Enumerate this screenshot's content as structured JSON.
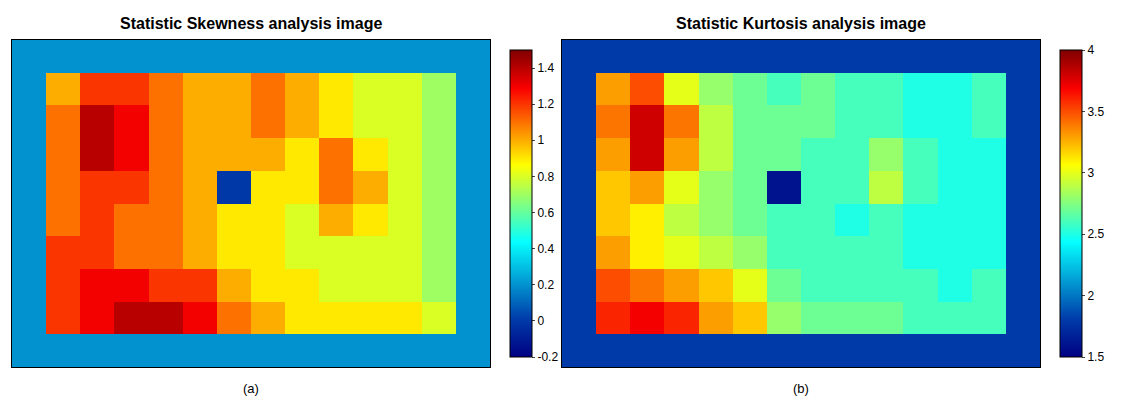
{
  "chart_data": [
    {
      "type": "heatmap",
      "title": "Statistic Skewness analysis image",
      "label": "(a)",
      "color": "Jet",
      "tick_labels": false,
      "colorbar": {
        "range": [
          -0.2,
          1.5
        ],
        "ticks": [
          -0.2,
          0,
          0.2,
          0.4,
          0.6,
          0.8,
          1,
          1.2,
          1.4
        ]
      },
      "cells": [
        [
          0.2,
          0.2,
          0.2,
          0.2,
          0.2,
          0.2,
          0.2,
          0.2,
          0.2,
          0.2,
          0.2,
          0.2,
          0.2,
          0.2
        ],
        [
          0.2,
          1.0,
          1.2,
          1.2,
          1.1,
          1.0,
          1.0,
          1.1,
          1.0,
          0.9,
          0.8,
          0.8,
          0.7,
          0.2
        ],
        [
          0.2,
          1.1,
          1.4,
          1.3,
          1.1,
          1.0,
          1.0,
          1.1,
          1.0,
          0.9,
          0.8,
          0.8,
          0.7,
          0.2
        ],
        [
          0.2,
          1.1,
          1.4,
          1.3,
          1.1,
          1.0,
          1.0,
          1.0,
          0.9,
          1.1,
          0.9,
          0.8,
          0.7,
          0.2
        ],
        [
          0.2,
          1.1,
          1.2,
          1.2,
          1.1,
          1.0,
          0.0,
          0.9,
          0.9,
          1.1,
          1.0,
          0.8,
          0.7,
          0.2
        ],
        [
          0.2,
          1.1,
          1.2,
          1.1,
          1.1,
          1.0,
          0.9,
          0.9,
          0.8,
          1.0,
          0.9,
          0.8,
          0.7,
          0.2
        ],
        [
          0.2,
          1.2,
          1.2,
          1.1,
          1.1,
          1.0,
          0.9,
          0.9,
          0.8,
          0.8,
          0.8,
          0.8,
          0.7,
          0.2
        ],
        [
          0.2,
          1.2,
          1.3,
          1.3,
          1.2,
          1.2,
          1.0,
          0.9,
          0.9,
          0.8,
          0.8,
          0.8,
          0.7,
          0.2
        ],
        [
          0.2,
          1.2,
          1.3,
          1.4,
          1.4,
          1.3,
          1.1,
          1.0,
          0.9,
          0.9,
          0.9,
          0.9,
          0.8,
          0.2
        ],
        [
          0.2,
          0.2,
          0.2,
          0.2,
          0.2,
          0.2,
          0.2,
          0.2,
          0.2,
          0.2,
          0.2,
          0.2,
          0.2,
          0.2
        ]
      ]
    },
    {
      "type": "heatmap",
      "title": "Statistic Kurtosis analysis image",
      "label": "(b)",
      "color": "Jet",
      "tick_labels": false,
      "colorbar": {
        "range": [
          1.5,
          4
        ],
        "ticks": [
          1.5,
          2,
          2.5,
          3,
          3.5,
          4
        ]
      },
      "cells": [
        [
          1.8,
          1.8,
          1.8,
          1.8,
          1.8,
          1.8,
          1.8,
          1.8,
          1.8,
          1.8,
          1.8,
          1.8,
          1.8,
          1.8
        ],
        [
          1.8,
          3.3,
          3.5,
          3.0,
          2.8,
          2.7,
          2.6,
          2.7,
          2.6,
          2.6,
          2.5,
          2.5,
          2.6,
          1.8
        ],
        [
          1.8,
          3.4,
          3.8,
          3.4,
          2.9,
          2.7,
          2.7,
          2.7,
          2.6,
          2.6,
          2.5,
          2.5,
          2.6,
          1.8
        ],
        [
          1.8,
          3.3,
          3.8,
          3.3,
          2.9,
          2.7,
          2.7,
          2.6,
          2.6,
          2.8,
          2.6,
          2.5,
          2.5,
          1.8
        ],
        [
          1.8,
          3.2,
          3.3,
          3.0,
          2.8,
          2.7,
          1.6,
          2.6,
          2.6,
          2.9,
          2.6,
          2.5,
          2.5,
          1.8
        ],
        [
          1.8,
          3.2,
          3.1,
          2.9,
          2.8,
          2.7,
          2.6,
          2.6,
          2.5,
          2.6,
          2.5,
          2.5,
          2.5,
          1.8
        ],
        [
          1.8,
          3.3,
          3.1,
          3.0,
          2.9,
          2.8,
          2.6,
          2.6,
          2.6,
          2.6,
          2.5,
          2.5,
          2.5,
          1.8
        ],
        [
          1.8,
          3.5,
          3.4,
          3.3,
          3.2,
          3.0,
          2.7,
          2.6,
          2.6,
          2.6,
          2.6,
          2.5,
          2.6,
          1.8
        ],
        [
          1.8,
          3.6,
          3.7,
          3.6,
          3.3,
          3.2,
          2.8,
          2.7,
          2.7,
          2.7,
          2.6,
          2.6,
          2.6,
          1.8
        ],
        [
          1.8,
          1.8,
          1.8,
          1.8,
          1.8,
          1.8,
          1.8,
          1.8,
          1.8,
          1.8,
          1.8,
          1.8,
          1.8,
          1.8
        ]
      ]
    }
  ]
}
